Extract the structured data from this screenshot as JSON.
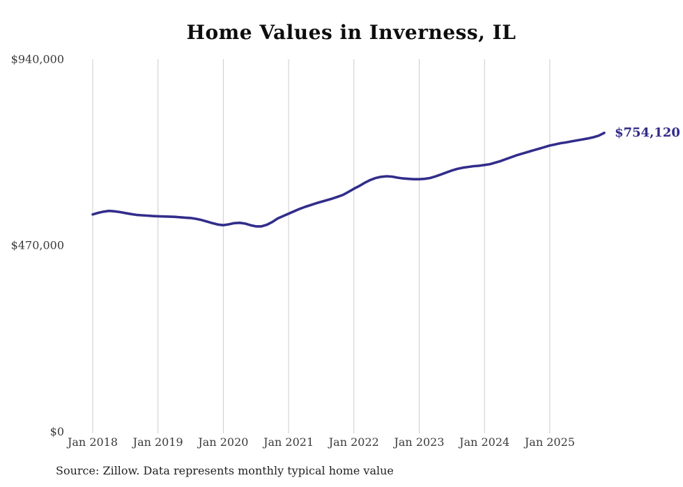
{
  "title": "Home Values in Inverness, IL",
  "source_note": "Source: Zillow. Data represents monthly typical home value",
  "colors": {
    "line": "#322d8a",
    "end_label": "#312b88",
    "gridline": "#cbcbcb",
    "axis_text": "#3a3a3a",
    "title_text": "#0d0d0d",
    "background": "#ffffff"
  },
  "chart_data": {
    "type": "line",
    "title": "Home Values in Inverness, IL",
    "series_name": "Monthly typical home value (Zillow)",
    "unit": "USD",
    "grid": "vertical-yearly-only",
    "legend": "none",
    "ylim": [
      0,
      940000
    ],
    "end_label": "$754,120",
    "end_value": 754120,
    "y_axis": {
      "ticks": [
        {
          "label": "$940,000",
          "value": 940000
        },
        {
          "label": "$470,000",
          "value": 470000
        },
        {
          "label": "$0",
          "value": 0
        }
      ]
    },
    "x_axis": {
      "ticks": [
        "Jan 2018",
        "Jan 2019",
        "Jan 2020",
        "Jan 2021",
        "Jan 2022",
        "Jan 2023",
        "Jan 2024",
        "Jan 2025"
      ]
    },
    "months": [
      "2018-01",
      "2018-02",
      "2018-03",
      "2018-04",
      "2018-05",
      "2018-06",
      "2018-07",
      "2018-08",
      "2018-09",
      "2018-10",
      "2018-11",
      "2018-12",
      "2019-01",
      "2019-02",
      "2019-03",
      "2019-04",
      "2019-05",
      "2019-06",
      "2019-07",
      "2019-08",
      "2019-09",
      "2019-10",
      "2019-11",
      "2019-12",
      "2020-01",
      "2020-02",
      "2020-03",
      "2020-04",
      "2020-05",
      "2020-06",
      "2020-07",
      "2020-08",
      "2020-09",
      "2020-10",
      "2020-11",
      "2020-12",
      "2021-01",
      "2021-02",
      "2021-03",
      "2021-04",
      "2021-05",
      "2021-06",
      "2021-07",
      "2021-08",
      "2021-09",
      "2021-10",
      "2021-11",
      "2021-12",
      "2022-01",
      "2022-02",
      "2022-03",
      "2022-04",
      "2022-05",
      "2022-06",
      "2022-07",
      "2022-08",
      "2022-09",
      "2022-10",
      "2022-11",
      "2022-12",
      "2023-01",
      "2023-02",
      "2023-03",
      "2023-04",
      "2023-05",
      "2023-06",
      "2023-07",
      "2023-08",
      "2023-09",
      "2023-10",
      "2023-11",
      "2023-12",
      "2024-01",
      "2024-02",
      "2024-03",
      "2024-04",
      "2024-05",
      "2024-06",
      "2024-07",
      "2024-08",
      "2024-09",
      "2024-10",
      "2024-11",
      "2024-12",
      "2025-01",
      "2025-02",
      "2025-03",
      "2025-04",
      "2025-05",
      "2025-06",
      "2025-07",
      "2025-08",
      "2025-09",
      "2025-10",
      "2025-11"
    ],
    "values": [
      548000,
      552000,
      555000,
      557000,
      556000,
      554000,
      551500,
      549000,
      547000,
      546000,
      545000,
      544000,
      543500,
      543000,
      542500,
      542000,
      541000,
      540000,
      539000,
      537000,
      534000,
      530000,
      526000,
      522500,
      521000,
      523000,
      526000,
      527000,
      525000,
      521000,
      518000,
      518000,
      522000,
      529000,
      538000,
      544000,
      550000,
      556000,
      562000,
      567000,
      571500,
      576000,
      580000,
      584000,
      588000,
      592500,
      597500,
      605000,
      613000,
      620000,
      628000,
      635000,
      640000,
      643000,
      644500,
      643500,
      641000,
      639000,
      638000,
      637000,
      637000,
      638000,
      640000,
      644000,
      649000,
      654000,
      659000,
      663000,
      666000,
      668000,
      670000,
      671000,
      673000,
      675000,
      679000,
      683000,
      688000,
      693000,
      698000,
      702000,
      706000,
      710000,
      714000,
      718000,
      722000,
      725000,
      728000,
      730000,
      732500,
      735000,
      737500,
      740000,
      743000,
      747000,
      754120
    ]
  }
}
